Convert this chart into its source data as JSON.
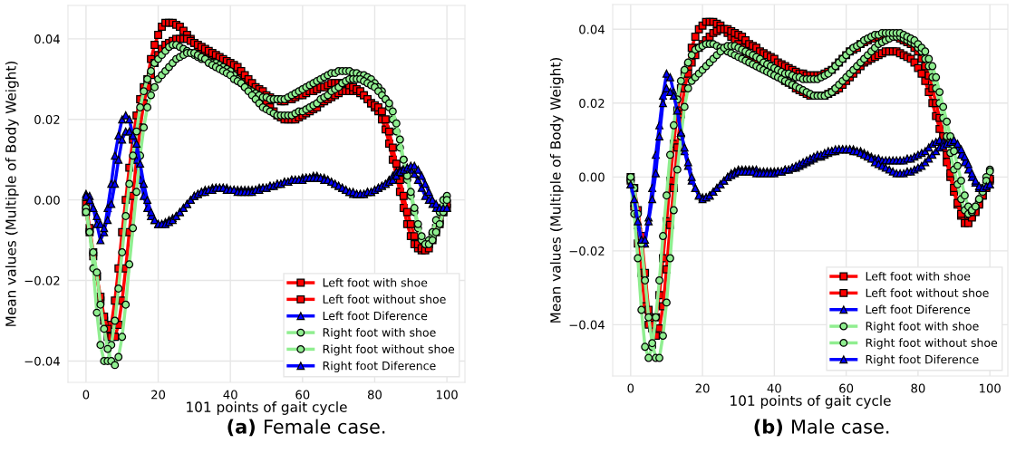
{
  "chart_data": [
    {
      "type": "line",
      "xlabel": "101 points of gait cycle",
      "ylabel": "Mean values (Multiple of Body Weight)",
      "annotations": [
        "(a) Female case."
      ],
      "legend": "bottom right",
      "grid": true,
      "xlim": [
        -5,
        105
      ],
      "xticks": [
        0,
        20,
        40,
        60,
        80,
        100
      ],
      "ylim": [
        -0.0453,
        0.0483
      ],
      "yticks": [
        {
          "value": -0.04,
          "label": "−0.04"
        },
        {
          "value": -0.02,
          "label": "−0.02"
        },
        {
          "value": 0,
          "label": "0.00"
        },
        {
          "value": 0.02,
          "label": "0.02"
        },
        {
          "value": 0.04,
          "label": "0.04"
        }
      ],
      "x": [
        0,
        1,
        2,
        3,
        4,
        5,
        6,
        7,
        8,
        9,
        10,
        11,
        12,
        13,
        14,
        15,
        16,
        17,
        18,
        19,
        20,
        21,
        22,
        23,
        24,
        25,
        26,
        27,
        28,
        29,
        30,
        31,
        32,
        33,
        34,
        35,
        36,
        37,
        38,
        39,
        40,
        41,
        42,
        43,
        44,
        45,
        46,
        47,
        48,
        49,
        50,
        51,
        52,
        53,
        54,
        55,
        56,
        57,
        58,
        59,
        60,
        61,
        62,
        63,
        64,
        65,
        66,
        67,
        68,
        69,
        70,
        71,
        72,
        73,
        74,
        75,
        76,
        77,
        78,
        79,
        80,
        81,
        82,
        83,
        84,
        85,
        86,
        87,
        88,
        89,
        90,
        91,
        92,
        93,
        94,
        95,
        96,
        97,
        98,
        99,
        100
      ],
      "series": [
        {
          "name": "Left foot with shoe",
          "color": "#ff0000",
          "marker": "square",
          "values": [
            -0.001,
            -0.007,
            -0.013,
            -0.019,
            -0.025,
            -0.03,
            -0.034,
            -0.031,
            -0.025,
            -0.017,
            -0.008,
            0.0,
            0.008,
            0.015,
            0.021,
            0.025,
            0.028,
            0.03,
            0.035,
            0.0385,
            0.041,
            0.043,
            0.044,
            0.044,
            0.044,
            0.0435,
            0.043,
            0.042,
            0.041,
            0.04,
            0.039,
            0.038,
            0.0375,
            0.037,
            0.0365,
            0.036,
            0.0355,
            0.035,
            0.0345,
            0.034,
            0.0335,
            0.033,
            0.032,
            0.031,
            0.03,
            0.029,
            0.028,
            0.027,
            0.026,
            0.025,
            0.024,
            0.023,
            0.022,
            0.021,
            0.0205,
            0.02,
            0.02,
            0.02,
            0.02,
            0.0205,
            0.021,
            0.0215,
            0.022,
            0.0225,
            0.023,
            0.024,
            0.0245,
            0.025,
            0.0255,
            0.026,
            0.0265,
            0.027,
            0.027,
            0.027,
            0.027,
            0.027,
            0.0265,
            0.026,
            0.025,
            0.024,
            0.023,
            0.022,
            0.02,
            0.0175,
            0.014,
            0.01,
            0.006,
            0.002,
            -0.002,
            -0.006,
            -0.009,
            -0.011,
            -0.012,
            -0.0125,
            -0.012,
            -0.011,
            -0.009,
            -0.007,
            -0.005,
            -0.003,
            -0.002
          ]
        },
        {
          "name": "Left foot without shoe",
          "color": "#ff0000",
          "marker": "square",
          "values": [
            -0.003,
            -0.008,
            -0.014,
            -0.019,
            -0.024,
            -0.029,
            -0.032,
            -0.034,
            -0.034,
            -0.031,
            -0.025,
            -0.017,
            -0.008,
            0.001,
            0.01,
            0.018,
            0.024,
            0.028,
            0.031,
            0.034,
            0.036,
            0.0375,
            0.0385,
            0.039,
            0.0395,
            0.04,
            0.04,
            0.04,
            0.04,
            0.0395,
            0.039,
            0.0385,
            0.038,
            0.0375,
            0.037,
            0.0365,
            0.036,
            0.0355,
            0.035,
            0.0345,
            0.034,
            0.0335,
            0.033,
            0.032,
            0.031,
            0.03,
            0.029,
            0.028,
            0.0275,
            0.027,
            0.026,
            0.0255,
            0.025,
            0.025,
            0.0245,
            0.0245,
            0.025,
            0.025,
            0.0255,
            0.026,
            0.026,
            0.0265,
            0.027,
            0.027,
            0.0275,
            0.028,
            0.028,
            0.0285,
            0.029,
            0.029,
            0.029,
            0.029,
            0.029,
            0.0285,
            0.028,
            0.0275,
            0.027,
            0.026,
            0.025,
            0.024,
            0.0235,
            0.023,
            0.022,
            0.02,
            0.017,
            0.013,
            0.009,
            0.005,
            0.001,
            -0.003,
            -0.006,
            -0.009,
            -0.011,
            -0.012,
            -0.0125,
            -0.012,
            -0.01,
            -0.008,
            -0.006,
            -0.003,
            -0.001
          ]
        },
        {
          "name": "Left foot Diference",
          "color": "#0000ff",
          "marker": "triangle",
          "values": [
            0.0015,
            0.001,
            -0.002,
            -0.006,
            -0.01,
            -0.008,
            -0.002,
            0.004,
            0.011,
            0.016,
            0.02,
            0.021,
            0.02,
            0.016,
            0.01,
            0.005,
            0.001,
            -0.002,
            -0.004,
            -0.005,
            -0.006,
            -0.006,
            -0.0055,
            -0.005,
            -0.0045,
            -0.004,
            -0.003,
            -0.002,
            -0.001,
            0.0,
            0.001,
            0.0015,
            0.002,
            0.0025,
            0.0025,
            0.003,
            0.003,
            0.003,
            0.003,
            0.003,
            0.0025,
            0.0025,
            0.0025,
            0.0025,
            0.0025,
            0.0025,
            0.0025,
            0.0025,
            0.003,
            0.003,
            0.003,
            0.0035,
            0.0035,
            0.004,
            0.004,
            0.0045,
            0.0045,
            0.005,
            0.005,
            0.005,
            0.0055,
            0.0055,
            0.0055,
            0.006,
            0.006,
            0.0055,
            0.0055,
            0.005,
            0.0045,
            0.004,
            0.0035,
            0.003,
            0.0025,
            0.002,
            0.0015,
            0.0015,
            0.0015,
            0.0015,
            0.002,
            0.002,
            0.0025,
            0.003,
            0.0035,
            0.004,
            0.005,
            0.006,
            0.007,
            0.0075,
            0.008,
            0.008,
            0.0075,
            0.0065,
            0.005,
            0.003,
            0.001,
            0.0,
            -0.001,
            -0.002,
            -0.002,
            -0.002,
            -0.002
          ]
        },
        {
          "name": "Right foot with shoe",
          "color": "#90ee90",
          "marker": "circle",
          "values": [
            -0.002,
            -0.008,
            -0.017,
            -0.028,
            -0.036,
            -0.04,
            -0.04,
            -0.036,
            -0.03,
            -0.022,
            -0.013,
            -0.004,
            0.004,
            0.011,
            0.017,
            0.023,
            0.027,
            0.03,
            0.032,
            0.034,
            0.035,
            0.036,
            0.037,
            0.038,
            0.0385,
            0.0385,
            0.038,
            0.0375,
            0.037,
            0.0365,
            0.036,
            0.0355,
            0.035,
            0.035,
            0.0345,
            0.034,
            0.034,
            0.0335,
            0.033,
            0.0325,
            0.032,
            0.031,
            0.03,
            0.029,
            0.028,
            0.0275,
            0.027,
            0.0265,
            0.026,
            0.0255,
            0.0255,
            0.025,
            0.025,
            0.025,
            0.025,
            0.025,
            0.0255,
            0.026,
            0.0265,
            0.027,
            0.0275,
            0.028,
            0.0285,
            0.029,
            0.0295,
            0.03,
            0.0305,
            0.031,
            0.0315,
            0.0315,
            0.032,
            0.032,
            0.032,
            0.032,
            0.0315,
            0.0315,
            0.031,
            0.031,
            0.0305,
            0.03,
            0.029,
            0.028,
            0.027,
            0.025,
            0.023,
            0.02,
            0.017,
            0.013,
            0.01,
            0.005,
            0.001,
            -0.003,
            -0.007,
            -0.01,
            -0.011,
            -0.01,
            -0.008,
            -0.005,
            -0.003,
            0.0,
            0.001
          ]
        },
        {
          "name": "Right foot without shoe",
          "color": "#90ee90",
          "marker": "circle",
          "values": [
            -0.003,
            -0.008,
            -0.013,
            -0.018,
            -0.026,
            -0.032,
            -0.037,
            -0.04,
            -0.041,
            -0.039,
            -0.034,
            -0.026,
            -0.016,
            -0.007,
            0.002,
            0.011,
            0.018,
            0.023,
            0.026,
            0.028,
            0.03,
            0.031,
            0.032,
            0.033,
            0.034,
            0.035,
            0.0355,
            0.036,
            0.0365,
            0.0365,
            0.0365,
            0.036,
            0.0355,
            0.035,
            0.034,
            0.0335,
            0.033,
            0.0325,
            0.032,
            0.0315,
            0.031,
            0.03,
            0.0295,
            0.029,
            0.028,
            0.027,
            0.026,
            0.025,
            0.024,
            0.023,
            0.0225,
            0.022,
            0.0215,
            0.021,
            0.021,
            0.021,
            0.021,
            0.021,
            0.0215,
            0.022,
            0.022,
            0.0225,
            0.023,
            0.0235,
            0.024,
            0.025,
            0.0255,
            0.026,
            0.027,
            0.0275,
            0.028,
            0.029,
            0.0295,
            0.03,
            0.03,
            0.03,
            0.03,
            0.0295,
            0.029,
            0.0285,
            0.028,
            0.027,
            0.026,
            0.025,
            0.024,
            0.022,
            0.019,
            0.015,
            0.01,
            0.006,
            0.002,
            -0.002,
            -0.006,
            -0.009,
            -0.011,
            -0.011,
            -0.01,
            -0.008,
            -0.006,
            -0.003,
            0.0
          ]
        },
        {
          "name": "Right foot Diference",
          "color": "#0000ff",
          "marker": "triangle",
          "values": [
            0.001,
            0.0,
            -0.002,
            -0.004,
            -0.006,
            -0.007,
            -0.005,
            -0.001,
            0.004,
            0.01,
            0.015,
            0.017,
            0.017,
            0.016,
            0.014,
            0.009,
            0.004,
            0.0,
            -0.003,
            -0.005,
            -0.006,
            -0.006,
            -0.006,
            -0.0055,
            -0.005,
            -0.004,
            -0.003,
            -0.002,
            -0.001,
            0.0,
            0.001,
            0.0015,
            0.002,
            0.002,
            0.0025,
            0.0025,
            0.003,
            0.003,
            0.003,
            0.0025,
            0.0025,
            0.0025,
            0.002,
            0.002,
            0.002,
            0.002,
            0.002,
            0.0025,
            0.0025,
            0.003,
            0.003,
            0.0035,
            0.0035,
            0.004,
            0.004,
            0.0045,
            0.0045,
            0.005,
            0.005,
            0.005,
            0.005,
            0.0055,
            0.0055,
            0.0055,
            0.0055,
            0.0055,
            0.005,
            0.005,
            0.0045,
            0.004,
            0.0035,
            0.003,
            0.0025,
            0.002,
            0.002,
            0.0015,
            0.0015,
            0.0015,
            0.002,
            0.002,
            0.0025,
            0.003,
            0.0035,
            0.004,
            0.0045,
            0.005,
            0.006,
            0.007,
            0.0075,
            0.008,
            0.0085,
            0.0085,
            0.0075,
            0.006,
            0.004,
            0.002,
            0.0,
            -0.001,
            -0.002,
            -0.002,
            -0.002
          ]
        }
      ]
    },
    {
      "type": "line",
      "xlabel": "101 points of gait cycle",
      "ylabel": "Mean values (Multiple of Body Weight)",
      "annotations": [
        "(b) Male case."
      ],
      "legend": "bottom right",
      "grid": true,
      "xlim": [
        -5,
        105
      ],
      "xticks": [
        0,
        20,
        40,
        60,
        80,
        100
      ],
      "ylim": [
        -0.0539,
        0.0467
      ],
      "yticks": [
        {
          "value": -0.04,
          "label": "−0.04"
        },
        {
          "value": -0.02,
          "label": "−0.02"
        },
        {
          "value": 0,
          "label": "0.00"
        },
        {
          "value": 0.02,
          "label": "0.02"
        },
        {
          "value": 0.04,
          "label": "0.04"
        }
      ],
      "x": [
        0,
        1,
        2,
        3,
        4,
        5,
        6,
        7,
        8,
        9,
        10,
        11,
        12,
        13,
        14,
        15,
        16,
        17,
        18,
        19,
        20,
        21,
        22,
        23,
        24,
        25,
        26,
        27,
        28,
        29,
        30,
        31,
        32,
        33,
        34,
        35,
        36,
        37,
        38,
        39,
        40,
        41,
        42,
        43,
        44,
        45,
        46,
        47,
        48,
        49,
        50,
        51,
        52,
        53,
        54,
        55,
        56,
        57,
        58,
        59,
        60,
        61,
        62,
        63,
        64,
        65,
        66,
        67,
        68,
        69,
        70,
        71,
        72,
        73,
        74,
        75,
        76,
        77,
        78,
        79,
        80,
        81,
        82,
        83,
        84,
        85,
        86,
        87,
        88,
        89,
        90,
        91,
        92,
        93,
        94,
        95,
        96,
        97,
        98,
        99,
        100
      ],
      "series": [
        {
          "name": "Left foot with shoe",
          "color": "#ff0000",
          "marker": "square",
          "values": [
            -0.001,
            -0.008,
            -0.018,
            -0.026,
            -0.035,
            -0.04,
            -0.041,
            -0.038,
            -0.032,
            -0.022,
            -0.012,
            -0.001,
            0.009,
            0.018,
            0.024,
            0.028,
            0.03,
            0.035,
            0.038,
            0.04,
            0.041,
            0.042,
            0.042,
            0.042,
            0.0415,
            0.041,
            0.04,
            0.039,
            0.038,
            0.037,
            0.036,
            0.035,
            0.034,
            0.033,
            0.032,
            0.031,
            0.03,
            0.0295,
            0.029,
            0.0285,
            0.028,
            0.0275,
            0.027,
            0.026,
            0.0255,
            0.025,
            0.024,
            0.0235,
            0.023,
            0.0225,
            0.022,
            0.022,
            0.022,
            0.022,
            0.022,
            0.0225,
            0.023,
            0.0235,
            0.024,
            0.025,
            0.026,
            0.027,
            0.028,
            0.029,
            0.03,
            0.031,
            0.0315,
            0.032,
            0.0325,
            0.033,
            0.0335,
            0.034,
            0.034,
            0.034,
            0.034,
            0.0335,
            0.033,
            0.0325,
            0.032,
            0.031,
            0.0295,
            0.028,
            0.026,
            0.023,
            0.02,
            0.0165,
            0.013,
            0.009,
            0.004,
            0.0,
            -0.004,
            -0.0075,
            -0.0105,
            -0.012,
            -0.012,
            -0.0105,
            -0.009,
            -0.007,
            -0.005,
            -0.003,
            -0.001
          ]
        },
        {
          "name": "Left foot without shoe",
          "color": "#ff0000",
          "marker": "square",
          "values": [
            0.0,
            -0.003,
            -0.009,
            -0.016,
            -0.026,
            -0.036,
            -0.04,
            -0.043,
            -0.041,
            -0.035,
            -0.025,
            -0.013,
            -0.003,
            0.008,
            0.017,
            0.024,
            0.028,
            0.031,
            0.033,
            0.035,
            0.036,
            0.037,
            0.038,
            0.039,
            0.0395,
            0.04,
            0.04,
            0.04,
            0.0395,
            0.039,
            0.0385,
            0.038,
            0.037,
            0.036,
            0.0355,
            0.035,
            0.034,
            0.0335,
            0.033,
            0.0325,
            0.032,
            0.031,
            0.0305,
            0.03,
            0.0295,
            0.029,
            0.0285,
            0.028,
            0.028,
            0.0275,
            0.0275,
            0.0275,
            0.0275,
            0.0275,
            0.028,
            0.0285,
            0.029,
            0.03,
            0.031,
            0.032,
            0.033,
            0.034,
            0.0345,
            0.035,
            0.036,
            0.0365,
            0.037,
            0.0375,
            0.0375,
            0.038,
            0.038,
            0.038,
            0.038,
            0.038,
            0.038,
            0.0375,
            0.037,
            0.0365,
            0.036,
            0.035,
            0.034,
            0.032,
            0.03,
            0.0275,
            0.024,
            0.02,
            0.016,
            0.011,
            0.006,
            0.001,
            -0.003,
            -0.007,
            -0.01,
            -0.0125,
            -0.0125,
            -0.011,
            -0.0095,
            -0.0075,
            -0.005,
            -0.0025,
            -0.0005
          ]
        },
        {
          "name": "Left foot Diference",
          "color": "#0000ff",
          "marker": "triangle",
          "values": [
            -0.002,
            -0.007,
            -0.013,
            -0.018,
            -0.018,
            -0.011,
            -0.003,
            0.006,
            0.014,
            0.022,
            0.028,
            0.027,
            0.023,
            0.018,
            0.012,
            0.007,
            0.003,
            -0.001,
            -0.003,
            -0.005,
            -0.0055,
            -0.0055,
            -0.005,
            -0.004,
            -0.003,
            -0.002,
            -0.001,
            0.0,
            0.001,
            0.0015,
            0.002,
            0.002,
            0.002,
            0.002,
            0.002,
            0.002,
            0.0015,
            0.0015,
            0.0015,
            0.0015,
            0.0015,
            0.0015,
            0.0015,
            0.002,
            0.002,
            0.0025,
            0.0025,
            0.003,
            0.0035,
            0.004,
            0.0045,
            0.005,
            0.0055,
            0.0055,
            0.006,
            0.0065,
            0.007,
            0.007,
            0.0075,
            0.0075,
            0.0075,
            0.0075,
            0.0075,
            0.007,
            0.007,
            0.0065,
            0.006,
            0.0055,
            0.005,
            0.005,
            0.0045,
            0.0045,
            0.0045,
            0.0045,
            0.0045,
            0.0045,
            0.0045,
            0.005,
            0.005,
            0.0055,
            0.006,
            0.0065,
            0.007,
            0.008,
            0.009,
            0.0095,
            0.01,
            0.0095,
            0.009,
            0.009,
            0.0085,
            0.0075,
            0.006,
            0.004,
            0.002,
            0.0,
            -0.0015,
            -0.003,
            -0.003,
            -0.0025,
            -0.002
          ]
        },
        {
          "name": "Right foot with shoe",
          "color": "#90ee90",
          "marker": "circle",
          "values": [
            -0.001,
            -0.01,
            -0.022,
            -0.036,
            -0.046,
            -0.049,
            -0.046,
            -0.038,
            -0.028,
            -0.016,
            -0.005,
            0.006,
            0.014,
            0.021,
            0.026,
            0.029,
            0.031,
            0.033,
            0.0345,
            0.035,
            0.0355,
            0.036,
            0.036,
            0.036,
            0.0355,
            0.035,
            0.0345,
            0.034,
            0.0335,
            0.033,
            0.0325,
            0.032,
            0.0315,
            0.031,
            0.0305,
            0.03,
            0.0295,
            0.029,
            0.0285,
            0.028,
            0.0275,
            0.027,
            0.0265,
            0.026,
            0.0255,
            0.025,
            0.0245,
            0.024,
            0.0235,
            0.023,
            0.0225,
            0.022,
            0.022,
            0.022,
            0.022,
            0.0225,
            0.023,
            0.024,
            0.025,
            0.026,
            0.027,
            0.028,
            0.029,
            0.03,
            0.031,
            0.032,
            0.033,
            0.034,
            0.035,
            0.036,
            0.0365,
            0.037,
            0.0375,
            0.038,
            0.038,
            0.038,
            0.0375,
            0.037,
            0.0365,
            0.036,
            0.035,
            0.034,
            0.032,
            0.03,
            0.027,
            0.024,
            0.02,
            0.016,
            0.011,
            0.0065,
            0.002,
            -0.002,
            -0.006,
            -0.009,
            -0.01,
            -0.0095,
            -0.008,
            -0.006,
            -0.003,
            0.0,
            0.002
          ]
        },
        {
          "name": "Right foot without shoe",
          "color": "#90ee90",
          "marker": "circle",
          "values": [
            0.0,
            -0.003,
            -0.01,
            -0.018,
            -0.028,
            -0.038,
            -0.045,
            -0.049,
            -0.049,
            -0.043,
            -0.034,
            -0.022,
            -0.009,
            0.002,
            0.011,
            0.019,
            0.024,
            0.026,
            0.027,
            0.028,
            0.029,
            0.03,
            0.031,
            0.032,
            0.033,
            0.034,
            0.035,
            0.0355,
            0.0355,
            0.0355,
            0.035,
            0.0345,
            0.034,
            0.0335,
            0.033,
            0.0325,
            0.032,
            0.031,
            0.0305,
            0.03,
            0.0295,
            0.029,
            0.0285,
            0.028,
            0.028,
            0.0275,
            0.027,
            0.027,
            0.0265,
            0.0265,
            0.0265,
            0.0265,
            0.0265,
            0.027,
            0.0275,
            0.028,
            0.029,
            0.03,
            0.031,
            0.032,
            0.033,
            0.034,
            0.035,
            0.0355,
            0.036,
            0.037,
            0.0375,
            0.038,
            0.0385,
            0.0385,
            0.039,
            0.039,
            0.039,
            0.039,
            0.039,
            0.039,
            0.0385,
            0.038,
            0.0375,
            0.037,
            0.036,
            0.035,
            0.034,
            0.032,
            0.03,
            0.027,
            0.023,
            0.019,
            0.015,
            0.011,
            0.007,
            0.003,
            -0.001,
            -0.005,
            -0.008,
            -0.009,
            -0.008,
            -0.006,
            -0.004,
            -0.001,
            0.0015
          ]
        },
        {
          "name": "Right foot Diference",
          "color": "#0000ff",
          "marker": "triangle",
          "values": [
            -0.002,
            -0.006,
            -0.012,
            -0.017,
            -0.017,
            -0.012,
            -0.006,
            0.001,
            0.011,
            0.02,
            0.024,
            0.023,
            0.022,
            0.018,
            0.012,
            0.008,
            0.004,
            0.0,
            -0.003,
            -0.005,
            -0.006,
            -0.0055,
            -0.005,
            -0.004,
            -0.003,
            -0.002,
            -0.001,
            0.0,
            0.0005,
            0.001,
            0.0015,
            0.0015,
            0.0015,
            0.0015,
            0.0015,
            0.001,
            0.001,
            0.001,
            0.001,
            0.001,
            0.001,
            0.0015,
            0.0015,
            0.002,
            0.002,
            0.0025,
            0.003,
            0.0035,
            0.004,
            0.0045,
            0.005,
            0.0055,
            0.006,
            0.006,
            0.0065,
            0.007,
            0.007,
            0.0075,
            0.0075,
            0.0075,
            0.0075,
            0.0075,
            0.007,
            0.007,
            0.0065,
            0.006,
            0.0055,
            0.005,
            0.004,
            0.0035,
            0.003,
            0.0025,
            0.002,
            0.0015,
            0.001,
            0.001,
            0.001,
            0.0015,
            0.0015,
            0.002,
            0.0025,
            0.003,
            0.004,
            0.005,
            0.006,
            0.007,
            0.008,
            0.0085,
            0.009,
            0.0095,
            0.01,
            0.009,
            0.0075,
            0.0055,
            0.0035,
            0.001,
            -0.001,
            -0.0025,
            -0.003,
            -0.0025,
            -0.002
          ]
        }
      ]
    }
  ]
}
